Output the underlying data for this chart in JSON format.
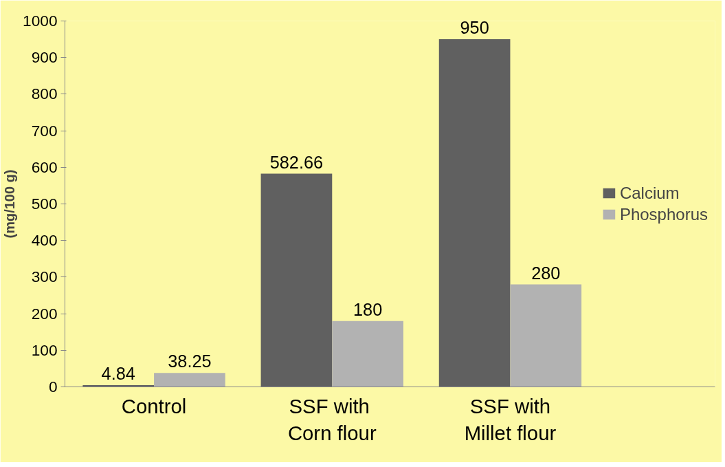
{
  "chart_data": {
    "type": "bar",
    "ylabel": "(mg/100 g)",
    "categories": [
      "Control",
      "SSF  with\nCorn flour",
      "SSF with\nMillet flour"
    ],
    "series": [
      {
        "name": "Calcium",
        "color": "#606060",
        "values": [
          4.84,
          582.66,
          950
        ]
      },
      {
        "name": "Phosphorus",
        "color": "#b2b2b2",
        "values": [
          38.25,
          180,
          280
        ]
      }
    ],
    "ylim": [
      0,
      1000
    ],
    "yticks": [
      0,
      100,
      200,
      300,
      400,
      500,
      600,
      700,
      800,
      900,
      1000
    ],
    "data_labels": true,
    "grid": false,
    "legend": "right"
  }
}
